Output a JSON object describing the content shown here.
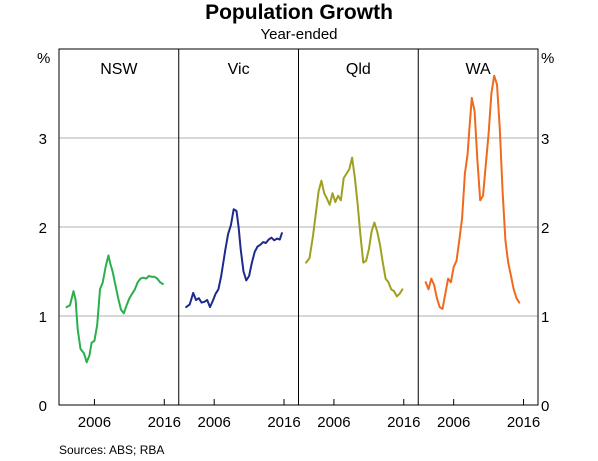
{
  "title": "Population Growth",
  "subtitle": "Year-ended",
  "footer": {
    "sources": "Sources:   ABS; RBA"
  },
  "chart_data": {
    "type": "line",
    "title": "Population Growth",
    "subtitle": "Year-ended",
    "y_unit_label": "%",
    "ylim": [
      0,
      4
    ],
    "yticks": [
      0,
      1,
      2,
      3
    ],
    "xlim": [
      2001.5,
      2017.5
    ],
    "xticks": [
      2006,
      2016
    ],
    "grid": true,
    "panels": [
      {
        "name": "NSW",
        "color": "#2ab04a",
        "x": [
          2002.0,
          2002.5,
          2003.0,
          2003.3,
          2003.6,
          2004.0,
          2004.5,
          2004.9,
          2005.3,
          2005.6,
          2006.0,
          2006.4,
          2006.8,
          2007.2,
          2007.6,
          2008.0,
          2008.3,
          2008.6,
          2009.0,
          2009.4,
          2009.8,
          2010.2,
          2010.6,
          2011.0,
          2011.4,
          2011.8,
          2012.2,
          2012.6,
          2013.0,
          2013.4,
          2013.8,
          2014.2,
          2014.6,
          2015.0,
          2015.4,
          2015.8
        ],
        "y": [
          1.1,
          1.12,
          1.28,
          1.18,
          0.85,
          0.63,
          0.58,
          0.48,
          0.56,
          0.7,
          0.72,
          0.9,
          1.3,
          1.38,
          1.55,
          1.68,
          1.58,
          1.5,
          1.35,
          1.2,
          1.07,
          1.03,
          1.12,
          1.2,
          1.25,
          1.3,
          1.38,
          1.42,
          1.43,
          1.42,
          1.45,
          1.44,
          1.44,
          1.42,
          1.38,
          1.36
        ]
      },
      {
        "name": "Vic",
        "color": "#1e2a8c",
        "x": [
          2002.0,
          2002.5,
          2003.0,
          2003.4,
          2003.8,
          2004.2,
          2004.6,
          2005.0,
          2005.4,
          2005.8,
          2006.2,
          2006.6,
          2007.0,
          2007.3,
          2007.6,
          2008.0,
          2008.4,
          2008.8,
          2009.2,
          2009.5,
          2009.8,
          2010.2,
          2010.6,
          2011.0,
          2011.4,
          2011.8,
          2012.2,
          2012.6,
          2013.0,
          2013.4,
          2013.8,
          2014.2,
          2014.6,
          2015.0,
          2015.4,
          2015.7
        ],
        "y": [
          1.1,
          1.13,
          1.26,
          1.18,
          1.2,
          1.15,
          1.16,
          1.18,
          1.1,
          1.17,
          1.25,
          1.3,
          1.45,
          1.6,
          1.75,
          1.92,
          2.02,
          2.2,
          2.18,
          2.0,
          1.75,
          1.5,
          1.4,
          1.45,
          1.6,
          1.72,
          1.78,
          1.8,
          1.83,
          1.82,
          1.86,
          1.88,
          1.85,
          1.87,
          1.86,
          1.93
        ]
      },
      {
        "name": "Qld",
        "color": "#a0a020",
        "x": [
          2002.0,
          2002.5,
          2003.0,
          2003.4,
          2003.8,
          2004.2,
          2004.6,
          2005.0,
          2005.4,
          2005.8,
          2006.2,
          2006.6,
          2007.0,
          2007.4,
          2007.8,
          2008.2,
          2008.6,
          2009.0,
          2009.4,
          2009.8,
          2010.2,
          2010.6,
          2011.0,
          2011.4,
          2011.8,
          2012.2,
          2012.6,
          2013.0,
          2013.4,
          2013.8,
          2014.2,
          2014.6,
          2015.0,
          2015.4,
          2015.8
        ],
        "y": [
          1.6,
          1.65,
          1.9,
          2.15,
          2.4,
          2.52,
          2.38,
          2.32,
          2.25,
          2.38,
          2.28,
          2.35,
          2.3,
          2.55,
          2.6,
          2.65,
          2.78,
          2.55,
          2.25,
          1.9,
          1.6,
          1.62,
          1.75,
          1.95,
          2.05,
          1.95,
          1.8,
          1.6,
          1.42,
          1.38,
          1.3,
          1.28,
          1.22,
          1.25,
          1.3
        ]
      },
      {
        "name": "WA",
        "color": "#f06a1e",
        "x": [
          2002.0,
          2002.4,
          2002.8,
          2003.2,
          2003.6,
          2004.0,
          2004.4,
          2004.8,
          2005.2,
          2005.6,
          2006.0,
          2006.4,
          2006.8,
          2007.2,
          2007.6,
          2008.0,
          2008.3,
          2008.6,
          2009.0,
          2009.4,
          2009.8,
          2010.2,
          2010.6,
          2011.0,
          2011.4,
          2011.8,
          2012.2,
          2012.6,
          2013.0,
          2013.4,
          2013.8,
          2014.2,
          2014.6,
          2015.0,
          2015.4
        ],
        "y": [
          1.38,
          1.3,
          1.42,
          1.35,
          1.2,
          1.1,
          1.08,
          1.25,
          1.42,
          1.38,
          1.55,
          1.62,
          1.85,
          2.1,
          2.6,
          2.82,
          3.15,
          3.45,
          3.3,
          2.75,
          2.3,
          2.35,
          2.7,
          3.05,
          3.5,
          3.7,
          3.6,
          3.1,
          2.4,
          1.85,
          1.6,
          1.45,
          1.3,
          1.2,
          1.15
        ]
      }
    ]
  }
}
